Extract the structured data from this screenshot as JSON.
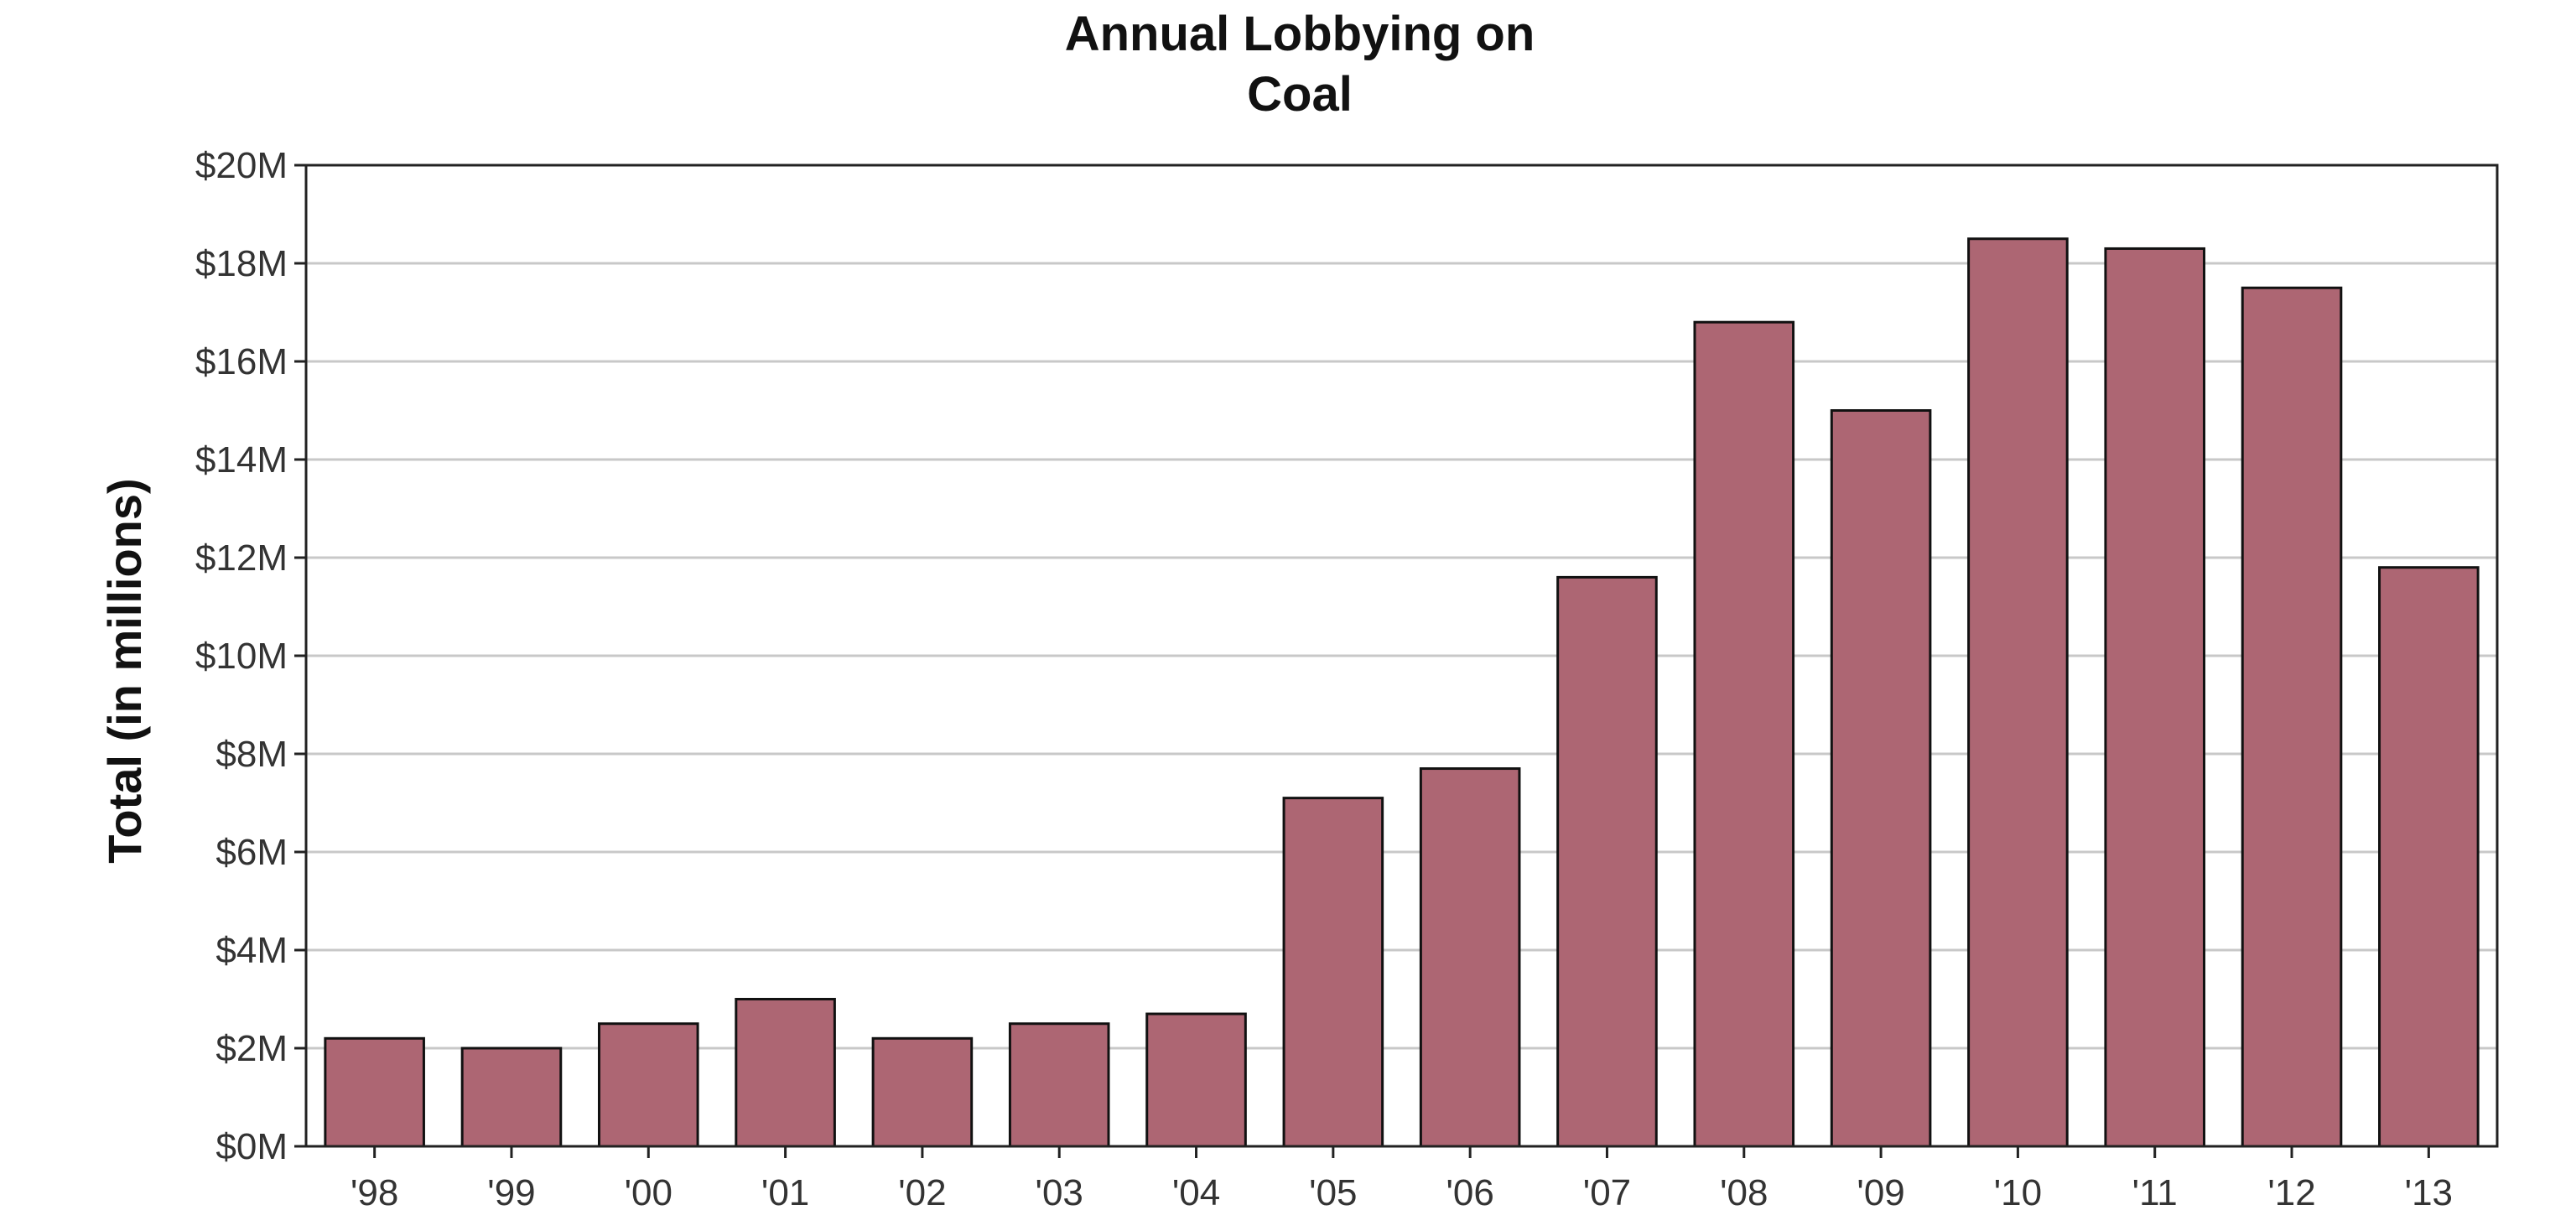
{
  "chart_data": {
    "type": "bar",
    "title_lines": [
      "Annual Lobbying on",
      "Coal"
    ],
    "xlabel": "",
    "ylabel": "Total (in millions)",
    "categories": [
      "'98",
      "'99",
      "'00",
      "'01",
      "'02",
      "'03",
      "'04",
      "'05",
      "'06",
      "'07",
      "'08",
      "'09",
      "'10",
      "'11",
      "'12",
      "'13"
    ],
    "values": [
      2.2,
      2.0,
      2.5,
      3.0,
      2.2,
      2.5,
      2.7,
      7.1,
      7.7,
      11.6,
      16.8,
      15.0,
      18.5,
      18.3,
      17.5,
      11.8
    ],
    "value_unit": "$M",
    "ylim": [
      0,
      20
    ],
    "y_ticks": [
      0,
      2,
      4,
      6,
      8,
      10,
      12,
      14,
      16,
      18,
      20
    ],
    "y_tick_labels": [
      "$0M",
      "$2M",
      "$4M",
      "$6M",
      "$8M",
      "$10M",
      "$12M",
      "$14M",
      "$16M",
      "$18M",
      "$20M"
    ],
    "grid": true,
    "legend": "none",
    "colors": {
      "bar_fill": "#ad6673",
      "bar_stroke": "#111111",
      "grid": "#c8c8c8",
      "text": "#111111"
    }
  }
}
